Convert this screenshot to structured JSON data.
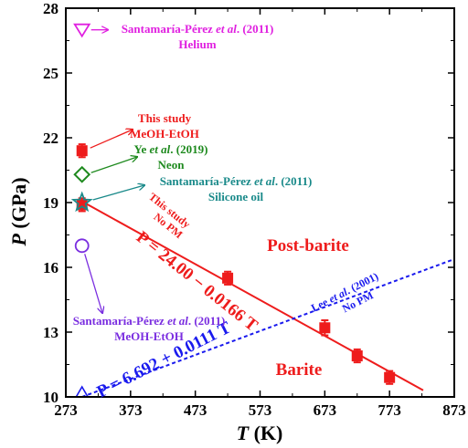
{
  "chart_data": {
    "type": "scatter",
    "xlabel": "T (K)",
    "ylabel": "P (GPa)",
    "xlim": [
      273,
      873
    ],
    "ylim": [
      10,
      28
    ],
    "x_ticks": [
      "273",
      "373",
      "473",
      "573",
      "673",
      "773",
      "873"
    ],
    "y_ticks": [
      "10",
      "13",
      "16",
      "19",
      "22",
      "25",
      "28"
    ],
    "regions": {
      "upper": "Post-barite",
      "lower": "Barite"
    },
    "series": [
      {
        "name": "This study MeOH-EtOH",
        "marker": "square-filled",
        "color": "#ee1c1c",
        "points": [
          {
            "x": 298,
            "y": 21.4,
            "err": 0.3
          },
          {
            "x": 298,
            "y": 18.9,
            "err": 0.3
          },
          {
            "x": 523,
            "y": 15.5,
            "err": 0.3
          },
          {
            "x": 673,
            "y": 13.2,
            "err": 0.35
          },
          {
            "x": 723,
            "y": 11.9,
            "err": 0.3
          },
          {
            "x": 773,
            "y": 10.9,
            "err": 0.3
          }
        ]
      },
      {
        "name": "Ye et al. (2019) Neon",
        "marker": "diamond-open",
        "color": "#1e8a1e",
        "points": [
          {
            "x": 298,
            "y": 20.3
          }
        ]
      },
      {
        "name": "Santamaría-Pérez et al. (2011) Silicone oil",
        "marker": "star-open",
        "color": "#1a8a8a",
        "points": [
          {
            "x": 298,
            "y": 19.0
          }
        ]
      },
      {
        "name": "Santamaría-Pérez et al. (2011) Helium",
        "marker": "triangle-down-open",
        "color": "#e020e0",
        "points": [
          {
            "x": 298,
            "y": 27.0
          }
        ]
      },
      {
        "name": "Santamaría-Pérez et al. (2011) MeOH-EtOH",
        "marker": "circle-open",
        "color": "#7a2ee0",
        "points": [
          {
            "x": 298,
            "y": 17.0
          }
        ]
      },
      {
        "name": "Lee et al. (2001) No PM",
        "marker": "triangle-up-open",
        "color": "#1a1aee",
        "points": [
          {
            "x": 298,
            "y": 10.0
          }
        ]
      }
    ],
    "lines": [
      {
        "name": "This study No PM",
        "intercept": 24.0,
        "slope": -0.0166,
        "color": "#ee1c1c",
        "style": "solid",
        "x_range": [
          293,
          825
        ]
      },
      {
        "name": "Lee et al. (2001) No PM",
        "intercept": 6.692,
        "slope": 0.0111,
        "color": "#1a1aee",
        "style": "dashed",
        "x_range": [
          298,
          873
        ]
      }
    ],
    "annotations": {
      "helium": [
        "Santamaría-Pérez ",
        "et al",
        ". (2011)",
        "Helium"
      ],
      "this_study": [
        "This study",
        "MeOH-EtOH"
      ],
      "ye": [
        "Ye ",
        "et al",
        ". (2019)",
        "Neon"
      ],
      "silicone": [
        "Santamaría-Pérez ",
        "et al",
        ". (2011)",
        "Silicone oil"
      ],
      "meoh": [
        "Santamaría-Pérez ",
        "et al",
        ". (2011)",
        "MeOH-EtOH"
      ],
      "red_line": [
        "This study",
        "No PM"
      ],
      "blue_line": [
        "Lee ",
        "et al",
        ". (2001)",
        "No PM"
      ],
      "red_eq": "P = 24.00 − 0.0166 T",
      "blue_eq": "P = 6.692 + 0.0111 T"
    }
  }
}
